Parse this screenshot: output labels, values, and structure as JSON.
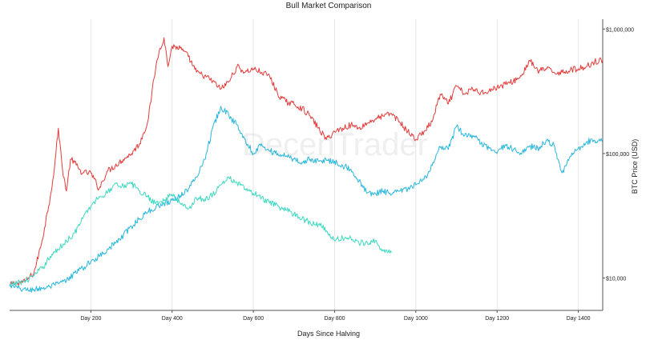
{
  "chart_data": {
    "type": "line",
    "title": "Bull Market Comparison",
    "xlabel": "Days Since Halving",
    "ylabel": "BTC Price (USD)",
    "x_scale": "linear",
    "y_scale": "log",
    "xlim": [
      0,
      1460
    ],
    "ylim": [
      5500,
      1200000
    ],
    "x_ticks": [
      {
        "value": 200,
        "label": "Day 200"
      },
      {
        "value": 400,
        "label": "Day 400"
      },
      {
        "value": 600,
        "label": "Day 600"
      },
      {
        "value": 800,
        "label": "Day 800"
      },
      {
        "value": 1000,
        "label": "Day 1000"
      },
      {
        "value": 1200,
        "label": "Day 1200"
      },
      {
        "value": 1400,
        "label": "Day 1400"
      }
    ],
    "y_ticks": [
      {
        "value": 10000,
        "label": "$10,000"
      },
      {
        "value": 100000,
        "label": "$100,000"
      },
      {
        "value": 1000000,
        "label": "$1,000,000"
      }
    ],
    "grid": {
      "x": true,
      "y": false
    },
    "y_axis_side": "right",
    "legend": "none",
    "watermark": "DecenTrader",
    "series": [
      {
        "color": "#e33b3b",
        "x": [
          0,
          20,
          40,
          60,
          80,
          100,
          110,
          120,
          130,
          140,
          150,
          160,
          170,
          180,
          200,
          220,
          240,
          260,
          280,
          300,
          320,
          340,
          350,
          360,
          370,
          380,
          390,
          400,
          420,
          440,
          460,
          480,
          500,
          520,
          540,
          560,
          580,
          600,
          620,
          640,
          660,
          680,
          700,
          720,
          740,
          760,
          780,
          800,
          820,
          840,
          860,
          880,
          900,
          920,
          940,
          960,
          980,
          1000,
          1020,
          1040,
          1060,
          1080,
          1100,
          1120,
          1140,
          1160,
          1180,
          1200,
          1220,
          1240,
          1260,
          1280,
          1300,
          1320,
          1340,
          1360,
          1380,
          1400,
          1420,
          1440,
          1460
        ],
        "y": [
          8800,
          9200,
          9500,
          11000,
          20000,
          45000,
          75000,
          160000,
          75000,
          50000,
          90000,
          85000,
          75000,
          70000,
          70000,
          52000,
          72000,
          80000,
          90000,
          100000,
          120000,
          180000,
          300000,
          500000,
          700000,
          850000,
          500000,
          730000,
          700000,
          600000,
          450000,
          420000,
          380000,
          330000,
          380000,
          500000,
          450000,
          480000,
          450000,
          420000,
          300000,
          260000,
          250000,
          230000,
          200000,
          160000,
          130000,
          150000,
          160000,
          170000,
          160000,
          175000,
          190000,
          200000,
          210000,
          180000,
          150000,
          130000,
          150000,
          180000,
          300000,
          250000,
          350000,
          300000,
          330000,
          310000,
          320000,
          340000,
          360000,
          380000,
          420000,
          560000,
          460000,
          480000,
          450000,
          450000,
          470000,
          480000,
          500000,
          550000,
          560000
        ]
      },
      {
        "color": "#29b7dc",
        "x": [
          0,
          20,
          40,
          60,
          80,
          100,
          120,
          140,
          160,
          180,
          200,
          220,
          240,
          260,
          280,
          300,
          320,
          340,
          360,
          380,
          400,
          420,
          440,
          460,
          480,
          500,
          520,
          540,
          560,
          580,
          600,
          620,
          640,
          660,
          680,
          700,
          720,
          740,
          760,
          780,
          800,
          820,
          840,
          860,
          880,
          900,
          920,
          940,
          960,
          980,
          1000,
          1020,
          1040,
          1060,
          1080,
          1100,
          1120,
          1140,
          1160,
          1180,
          1200,
          1220,
          1240,
          1260,
          1280,
          1300,
          1320,
          1340,
          1360,
          1380,
          1400,
          1420,
          1440,
          1460
        ],
        "y": [
          8600,
          8300,
          8000,
          8100,
          8300,
          8500,
          9000,
          9500,
          11000,
          12000,
          13500,
          15000,
          17000,
          19000,
          22000,
          26000,
          30000,
          34000,
          37000,
          40000,
          42000,
          46000,
          52000,
          65000,
          90000,
          160000,
          240000,
          200000,
          170000,
          130000,
          100000,
          120000,
          105000,
          100000,
          95000,
          90000,
          85000,
          90000,
          87000,
          88000,
          87000,
          80000,
          75000,
          60000,
          48000,
          48000,
          50000,
          47000,
          50000,
          52000,
          56000,
          62000,
          80000,
          112000,
          108000,
          165000,
          140000,
          140000,
          120000,
          110000,
          100000,
          118000,
          108000,
          99000,
          115000,
          110000,
          125000,
          118000,
          70000,
          95000,
          110000,
          124000,
          128000,
          125000
        ]
      },
      {
        "color": "#3dd9c1",
        "x": [
          0,
          20,
          40,
          60,
          80,
          100,
          120,
          140,
          160,
          180,
          200,
          220,
          240,
          260,
          280,
          300,
          320,
          340,
          360,
          380,
          400,
          420,
          440,
          460,
          480,
          500,
          520,
          540,
          560,
          580,
          600,
          620,
          640,
          660,
          680,
          700,
          720,
          740,
          760,
          780,
          800,
          820,
          840,
          860,
          880,
          900,
          920,
          940
        ],
        "y": [
          8700,
          9200,
          9500,
          10500,
          12000,
          15000,
          17000,
          20000,
          23000,
          30000,
          38000,
          45000,
          48000,
          58000,
          55000,
          57000,
          50000,
          45000,
          40000,
          42000,
          47000,
          40000,
          36000,
          44000,
          43000,
          47000,
          56000,
          64000,
          58000,
          52000,
          48000,
          44000,
          40000,
          38000,
          35000,
          33000,
          30000,
          28000,
          27000,
          24000,
          20000,
          21000,
          21000,
          19000,
          19500,
          20000,
          16500,
          16000
        ]
      }
    ]
  }
}
